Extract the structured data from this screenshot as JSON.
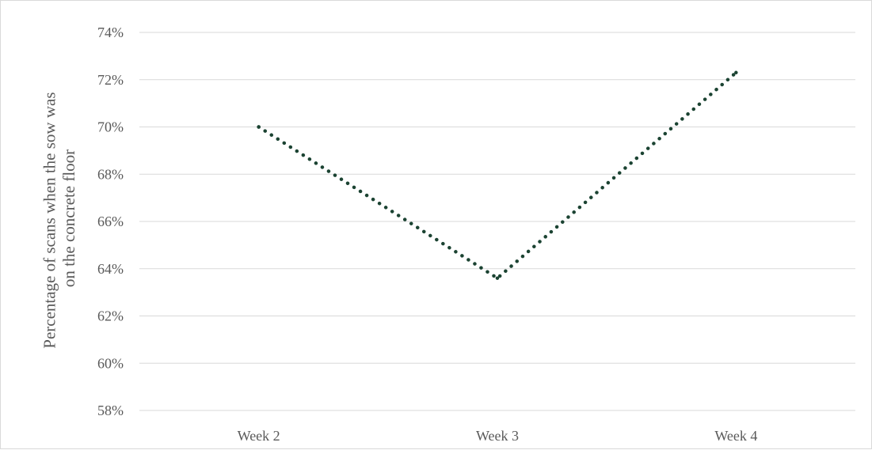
{
  "chart_data": {
    "type": "line",
    "categories": [
      "Week 2",
      "Week 3",
      "Week 4"
    ],
    "series": [
      {
        "values": [
          0.7,
          0.636,
          0.723
        ]
      }
    ],
    "ylabel": [
      "Percentage of scans when the sow was",
      "on the concrete floor"
    ],
    "yticks": [
      "58%",
      "60%",
      "62%",
      "64%",
      "66%",
      "68%",
      "70%",
      "72%",
      "74%"
    ],
    "ylim": [
      0.58,
      0.74
    ],
    "grid": true,
    "line_style": "dotted",
    "line_color": "#1b4332"
  }
}
